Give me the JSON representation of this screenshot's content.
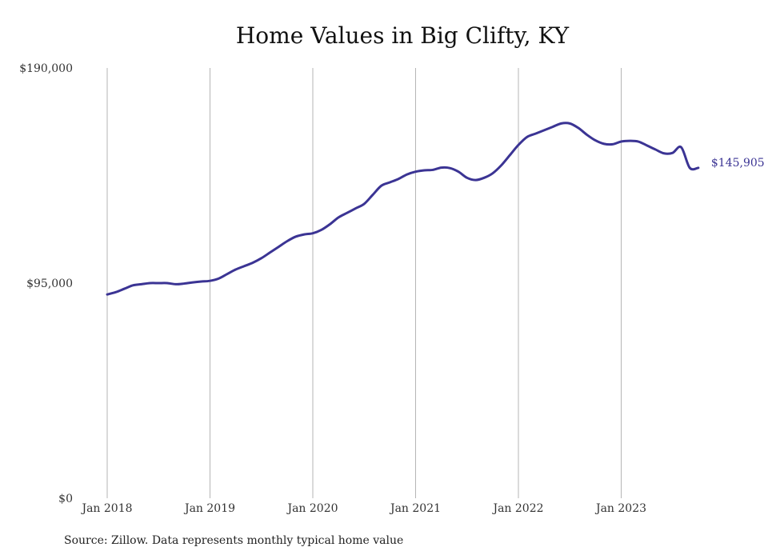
{
  "chart_data": {
    "type": "line",
    "title": "Home Values in Big Clifty, KY",
    "xlabel": "",
    "ylabel": "",
    "ylim": [
      0,
      190000
    ],
    "y_ticks": [
      {
        "value": 0,
        "label": "$0"
      },
      {
        "value": 95000,
        "label": "$95,000"
      },
      {
        "value": 190000,
        "label": "$190,000"
      }
    ],
    "x_ticks": [
      "Jan 2018",
      "Jan 2019",
      "Jan 2020",
      "Jan 2021",
      "Jan 2022",
      "Jan 2023"
    ],
    "x_start": "2018-01",
    "grid": "vertical",
    "line_color": "#3b3494",
    "end_label": "$145,905",
    "series": [
      {
        "name": "",
        "x": [
          "2018-01",
          "2018-02",
          "2018-03",
          "2018-04",
          "2018-05",
          "2018-06",
          "2018-07",
          "2018-08",
          "2018-09",
          "2018-10",
          "2018-11",
          "2018-12",
          "2019-01",
          "2019-02",
          "2019-03",
          "2019-04",
          "2019-05",
          "2019-06",
          "2019-07",
          "2019-08",
          "2019-09",
          "2019-10",
          "2019-11",
          "2019-12",
          "2020-01",
          "2020-02",
          "2020-03",
          "2020-04",
          "2020-05",
          "2020-06",
          "2020-07",
          "2020-08",
          "2020-09",
          "2020-10",
          "2020-11",
          "2020-12",
          "2021-01",
          "2021-02",
          "2021-03",
          "2021-04",
          "2021-05",
          "2021-06",
          "2021-07",
          "2021-08",
          "2021-09",
          "2021-10",
          "2021-11",
          "2021-12",
          "2022-01",
          "2022-02",
          "2022-03",
          "2022-04",
          "2022-05",
          "2022-06",
          "2022-07",
          "2022-08",
          "2022-09",
          "2022-10",
          "2022-11",
          "2022-12",
          "2023-01",
          "2023-02",
          "2023-03",
          "2023-04",
          "2023-05",
          "2023-06",
          "2023-07",
          "2023-08",
          "2023-09",
          "2023-10"
        ],
        "values": [
          90000,
          91000,
          92500,
          94000,
          94500,
          95000,
          95000,
          95000,
          94500,
          94800,
          95300,
          95700,
          96000,
          97000,
          99000,
          101000,
          102500,
          104000,
          106000,
          108500,
          111000,
          113500,
          115500,
          116500,
          117000,
          118500,
          121000,
          124000,
          126000,
          128000,
          130000,
          134000,
          138000,
          139500,
          141000,
          143000,
          144200,
          144800,
          145000,
          146000,
          145800,
          144200,
          141500,
          140500,
          141500,
          143500,
          147000,
          151500,
          156000,
          159500,
          161000,
          162500,
          164000,
          165500,
          165500,
          163500,
          160500,
          158000,
          156500,
          156300,
          157500,
          157800,
          157500,
          155800,
          154000,
          152300,
          152500,
          155000,
          145905,
          145905
        ]
      }
    ]
  },
  "source": "Source: Zillow. Data represents monthly typical home value"
}
